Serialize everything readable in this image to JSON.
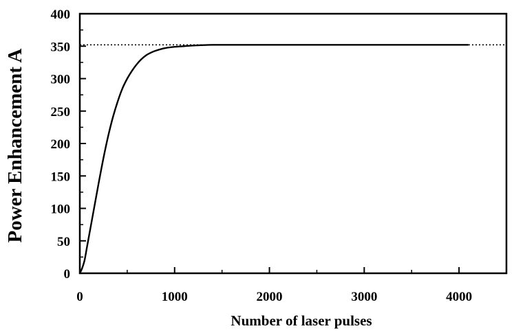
{
  "chart_data": {
    "type": "line",
    "title": "",
    "xlabel": "Number of laser pulses",
    "ylabel": "Power Enhancement A",
    "xlim": [
      0,
      4500
    ],
    "ylim": [
      0,
      400
    ],
    "x_ticks": [
      0,
      1000,
      2000,
      3000,
      4000
    ],
    "y_ticks": [
      0,
      50,
      100,
      150,
      200,
      250,
      300,
      350,
      400
    ],
    "x_minor_step": 500,
    "y_minor_step": 25,
    "grid": false,
    "legend": "none",
    "series": [
      {
        "style": "solid",
        "color": "#000000",
        "x": [
          0,
          25,
          50,
          75,
          100,
          150,
          200,
          250,
          300,
          350,
          400,
          450,
          500,
          550,
          600,
          650,
          700,
          750,
          800,
          900,
          1000,
          1100,
          1200,
          1400,
          1600,
          2000,
          2500,
          3000,
          3500,
          4100
        ],
        "y": [
          0,
          8,
          20,
          40,
          60,
          100,
          140,
          178,
          212,
          241,
          265,
          285,
          300,
          312,
          322,
          330,
          336,
          340,
          343,
          347,
          349,
          350,
          351,
          352,
          352,
          352,
          352,
          352,
          352,
          352
        ]
      },
      {
        "style": "dotted",
        "color": "#000000",
        "x": [
          0,
          4500
        ],
        "y": [
          352,
          352
        ]
      }
    ]
  }
}
